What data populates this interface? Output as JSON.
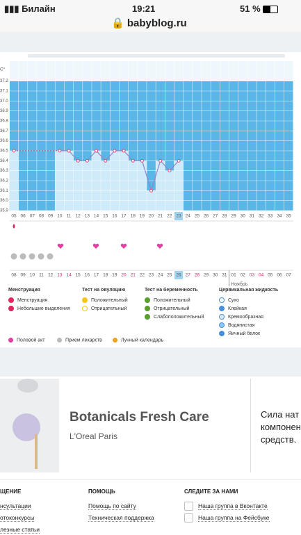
{
  "status_bar": {
    "carrier": "Билайн",
    "time": "19:21",
    "battery": "51 %"
  },
  "address_bar": {
    "url": "babyblog.ru"
  },
  "chart_data": {
    "type": "line",
    "y_unit": "С°",
    "categories": [
      "05",
      "06",
      "07",
      "08",
      "09",
      "10",
      "11",
      "12",
      "13",
      "14",
      "15",
      "16",
      "17",
      "18",
      "19",
      "20",
      "21",
      "22",
      "23",
      "24",
      "25",
      "26",
      "27",
      "28",
      "29",
      "30",
      "31",
      "32",
      "33",
      "34",
      "35"
    ],
    "values": [
      36.5,
      null,
      null,
      null,
      null,
      36.5,
      36.5,
      36.4,
      36.4,
      36.5,
      36.4,
      36.5,
      36.5,
      36.4,
      36.4,
      36.1,
      36.4,
      36.3,
      36.4,
      null,
      null,
      null,
      null,
      null,
      null,
      null,
      null,
      null,
      null,
      null,
      null
    ],
    "dates": [
      "08",
      "09",
      "10",
      "11",
      "12",
      "13",
      "14",
      "15",
      "16",
      "17",
      "18",
      "19",
      "20",
      "21",
      "22",
      "23",
      "24",
      "25",
      "26",
      "27",
      "28",
      "29",
      "30",
      "31",
      "01",
      "02",
      "03",
      "04",
      "05",
      "06",
      "07"
    ],
    "date_colors": [
      "#555",
      "#555",
      "#555",
      "#555",
      "#555",
      "#e0245e",
      "#e0245e",
      "#555",
      "#555",
      "#555",
      "#555",
      "#555",
      "#e0245e",
      "#e0245e",
      "#555",
      "#555",
      "#555",
      "#555",
      "#555",
      "#e0245e",
      "#e0245e",
      "#555",
      "#555",
      "#555",
      "#555",
      "#555",
      "#e0245e",
      "#e0245e",
      "#555",
      "#555",
      "#555"
    ],
    "month_label": "Ноябрь",
    "ylim": [
      35.9,
      37.4
    ],
    "yticks": [
      35.9,
      {
        "value": 36,
        "label": "36.0"
      },
      36.1,
      36.2,
      36.3,
      36.4,
      36.5,
      36.6,
      36.7,
      36.8,
      36.9,
      {
        "value": 37,
        "label": "37.0"
      },
      37.1,
      37.2
    ],
    "color": "#8f86c8",
    "marker_color": "#e0457b",
    "fill_color": "#5ab6e6",
    "bar_color": "#cfeaf9",
    "grid": true
  },
  "legend": {
    "groups": [
      {
        "title": "Менструация",
        "items": [
          "Менструация",
          "Небольшие выделения"
        ]
      },
      {
        "title": "Тест на овуляцию",
        "items": [
          "Положительный",
          "Отрицательный"
        ]
      },
      {
        "title": "Тест на беременность",
        "items": [
          "Положительный",
          "Отрицательный",
          "Слабоположительный"
        ]
      },
      {
        "title": "Цервикальная жидкость",
        "items": [
          "Сухо",
          "Клейкая",
          "Кремообразная",
          "Водянистая",
          "Яичный белок"
        ]
      }
    ],
    "extra": [
      "Половой акт",
      "Прием лекарств",
      "Лунный календарь"
    ]
  },
  "ad": {
    "title": "Botanicals Fresh Care",
    "brand": "L'Oreal Paris",
    "side_text": [
      "Сила нат",
      "компонен",
      "средств."
    ]
  },
  "footer": {
    "columns": [
      {
        "title": "ЩЕНИЕ",
        "links": [
          "нсультации",
          "отоконкурсы",
          "лезные статьи"
        ]
      },
      {
        "title": "ПОМОЩЬ",
        "links": [
          "Помощь по сайту",
          "Техническая поддержка"
        ]
      },
      {
        "title": "СЛЕДИТЕ ЗА НАМИ",
        "links": [
          "Наша группа в Вконтакте",
          "Наша группа на Фейсбуке"
        ]
      }
    ]
  }
}
